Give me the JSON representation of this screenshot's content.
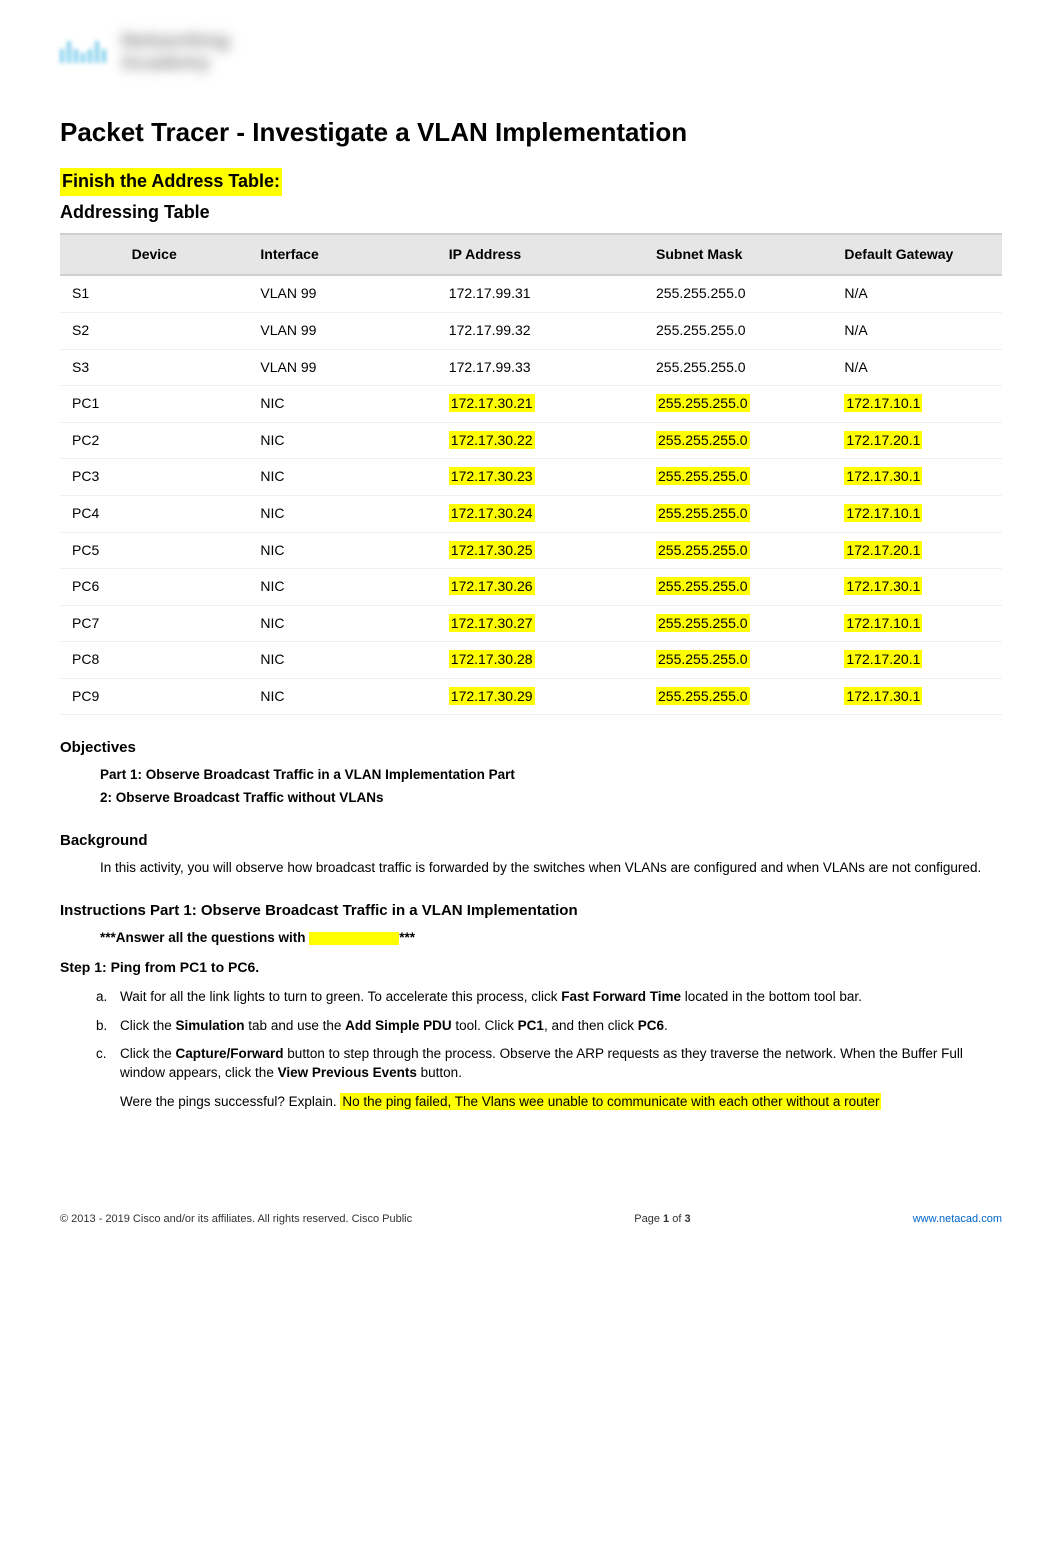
{
  "logo": {
    "line1": "Networking",
    "line2": "Academy"
  },
  "title": "Packet Tracer - Investigate a VLAN Implementation",
  "headings": {
    "finish_table": "Finish the Address Table:",
    "addressing_table": "Addressing Table",
    "objectives": "Objectives",
    "background": "Background",
    "instructions": "Instructions Part 1: Observe Broadcast Traffic in a VLAN Implementation"
  },
  "table": {
    "columns": [
      "Device",
      "Interface",
      "IP Address",
      "Subnet Mask",
      "Default Gateway"
    ],
    "col_widths": [
      "20%",
      "20%",
      "22%",
      "20%",
      "18%"
    ],
    "header_bg": "#e6e6e6",
    "highlight_bg": "#ffff00",
    "rows": [
      {
        "cells": [
          "S1",
          "VLAN 99",
          "172.17.99.31",
          "255.255.255.0",
          "N/A"
        ],
        "hl": [
          false,
          false,
          false,
          false,
          false
        ]
      },
      {
        "cells": [
          "S2",
          "VLAN 99",
          "172.17.99.32",
          "255.255.255.0",
          "N/A"
        ],
        "hl": [
          false,
          false,
          false,
          false,
          false
        ]
      },
      {
        "cells": [
          "S3",
          "VLAN 99",
          "172.17.99.33",
          "255.255.255.0",
          "N/A"
        ],
        "hl": [
          false,
          false,
          false,
          false,
          false
        ]
      },
      {
        "cells": [
          "PC1",
          "NIC",
          "172.17.30.21",
          "255.255.255.0",
          "172.17.10.1"
        ],
        "hl": [
          false,
          false,
          true,
          true,
          true
        ]
      },
      {
        "cells": [
          "PC2",
          "NIC",
          "172.17.30.22",
          "255.255.255.0",
          "172.17.20.1"
        ],
        "hl": [
          false,
          false,
          true,
          true,
          true
        ]
      },
      {
        "cells": [
          "PC3",
          "NIC",
          "172.17.30.23",
          "255.255.255.0",
          "172.17.30.1"
        ],
        "hl": [
          false,
          false,
          true,
          true,
          true
        ]
      },
      {
        "cells": [
          "PC4",
          "NIC",
          "172.17.30.24",
          "255.255.255.0",
          "172.17.10.1"
        ],
        "hl": [
          false,
          false,
          true,
          true,
          true
        ]
      },
      {
        "cells": [
          "PC5",
          "NIC",
          "172.17.30.25",
          "255.255.255.0",
          "172.17.20.1"
        ],
        "hl": [
          false,
          false,
          true,
          true,
          true
        ]
      },
      {
        "cells": [
          "PC6",
          "NIC",
          "172.17.30.26",
          "255.255.255.0",
          "172.17.30.1"
        ],
        "hl": [
          false,
          false,
          true,
          true,
          true
        ]
      },
      {
        "cells": [
          "PC7",
          "NIC",
          "172.17.30.27",
          "255.255.255.0",
          "172.17.10.1"
        ],
        "hl": [
          false,
          false,
          true,
          true,
          true
        ]
      },
      {
        "cells": [
          "PC8",
          "NIC",
          "172.17.30.28",
          "255.255.255.0",
          "172.17.20.1"
        ],
        "hl": [
          false,
          false,
          true,
          true,
          true
        ]
      },
      {
        "cells": [
          "PC9",
          "NIC",
          "172.17.30.29",
          "255.255.255.0",
          "172.17.30.1"
        ],
        "hl": [
          false,
          false,
          true,
          true,
          true
        ]
      }
    ]
  },
  "objectives": {
    "part1": "Part 1: Observe Broadcast Traffic in a VLAN Implementation Part",
    "part2": "2: Observe Broadcast Traffic without VLANs"
  },
  "background_text": "In this activity, you will observe how broadcast traffic is forwarded by the switches when VLANs are configured and when VLANs are not configured.",
  "answer_prompt": {
    "prefix": "***Answer all the questions with ",
    "suffix": "***"
  },
  "step1": {
    "title": "Step 1: Ping from PC1 to PC6.",
    "items": [
      {
        "marker": "a.",
        "text_pre": "Wait for all the link lights to turn to green. To accelerate this process, click ",
        "bold1": "Fast Forward Time",
        "text_post": " located in the bottom tool bar."
      },
      {
        "marker": "b.",
        "text_pre": "Click the ",
        "bold1": "Simulation",
        "mid1": " tab and use the ",
        "bold2": "Add Simple PDU",
        "mid2": " tool. Click ",
        "bold3": "PC1",
        "mid3": ", and then click ",
        "bold4": "PC6",
        "text_post": "."
      },
      {
        "marker": "c.",
        "text_pre": "Click the ",
        "bold1": "Capture/Forward",
        "mid1": " button to step through the process. Observe the ARP requests as they traverse the network. When the Buffer Full window appears, click the ",
        "bold2": "View Previous Events",
        "text_post": " button."
      }
    ],
    "question": "Were the pings successful? Explain. ",
    "answer": "No the ping failed, The Vlans wee unable to communicate with each other without a router"
  },
  "footer": {
    "copyright": "© 2013 - 2019 Cisco and/or its affiliates. All rights reserved. Cisco Public",
    "page": "Page 1 of 3",
    "link": "www.netacad.com"
  },
  "colors": {
    "highlight": "#ffff00",
    "header_bg": "#e6e6e6",
    "link": "#0066cc",
    "text": "#000000",
    "background": "#ffffff"
  }
}
